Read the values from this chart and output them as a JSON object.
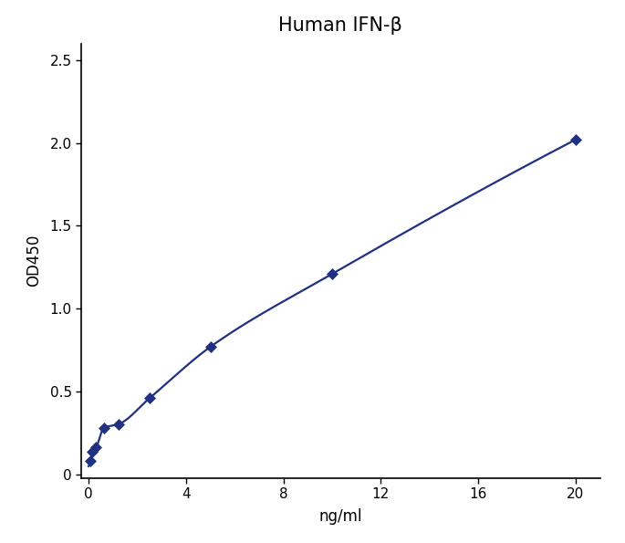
{
  "title": "Human IFN-β",
  "xlabel": "ng/ml",
  "ylabel": "OD450",
  "data_x": [
    0.078,
    0.156,
    0.313,
    0.625,
    1.25,
    2.5,
    5,
    10,
    20
  ],
  "data_y": [
    0.08,
    0.14,
    0.165,
    0.28,
    0.305,
    0.46,
    0.77,
    1.21,
    2.02
  ],
  "xlim": [
    -0.3,
    21
  ],
  "ylim": [
    -0.02,
    2.6
  ],
  "xticks": [
    0,
    4,
    8,
    12,
    16,
    20
  ],
  "yticks": [
    0,
    0.5,
    1.0,
    1.5,
    2.0,
    2.5
  ],
  "ytick_labels": [
    "0",
    "0.5",
    "1.0",
    "1.5",
    "2.0",
    "2.5"
  ],
  "xtick_labels": [
    "0",
    "4",
    "8",
    "12",
    "16",
    "20"
  ],
  "color": "#1f3180",
  "line_width": 1.6,
  "marker": "D",
  "marker_size": 6,
  "title_fontsize": 15,
  "label_fontsize": 12,
  "tick_fontsize": 11,
  "background_color": "#ffffff",
  "figwidth": 6.85,
  "figheight": 5.95
}
